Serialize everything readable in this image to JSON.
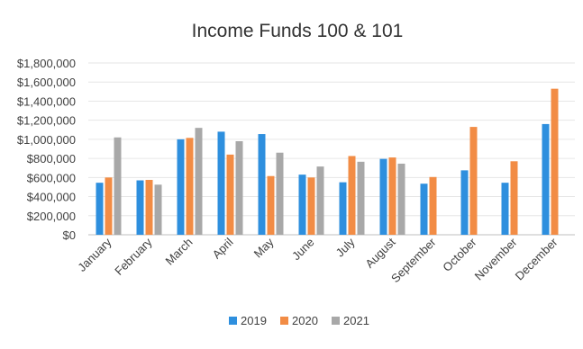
{
  "chart_data": {
    "type": "bar",
    "title": "Income Funds 100 & 101",
    "categories": [
      "January",
      "February",
      "March",
      "April",
      "May",
      "June",
      "July",
      "August",
      "September",
      "October",
      "November",
      "December"
    ],
    "series": [
      {
        "name": "2019",
        "color": "#2E8FDE",
        "values": [
          545000,
          570000,
          1000000,
          1080000,
          1055000,
          630000,
          550000,
          795000,
          535000,
          675000,
          545000,
          1160000
        ]
      },
      {
        "name": "2020",
        "color": "#F28C45",
        "values": [
          600000,
          575000,
          1015000,
          840000,
          615000,
          600000,
          825000,
          810000,
          605000,
          1130000,
          770000,
          1530000
        ]
      },
      {
        "name": "2021",
        "color": "#A8A8A8",
        "values": [
          1020000,
          525000,
          1120000,
          980000,
          860000,
          715000,
          765000,
          745000,
          null,
          null,
          null,
          null
        ]
      }
    ],
    "y_ticks": [
      "$0",
      "$200,000",
      "$400,000",
      "$600,000",
      "$800,000",
      "$1,000,000",
      "$1,200,000",
      "$1,400,000",
      "$1,600,000",
      "$1,800,000"
    ],
    "ylim": [
      0,
      1800000
    ],
    "grid": true,
    "legend_position": "bottom"
  }
}
